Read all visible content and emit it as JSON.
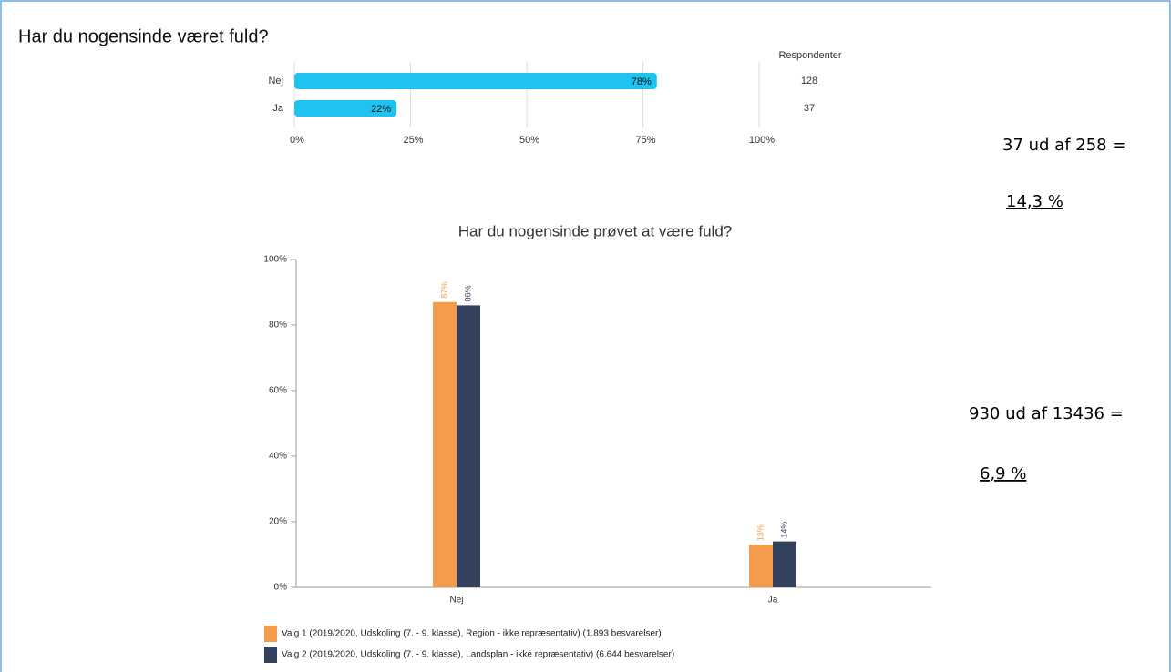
{
  "chart_data": [
    {
      "type": "hbar",
      "title": "Har du nogensinde været fuld?",
      "categories": [
        "Nej",
        "Ja"
      ],
      "values": [
        78,
        22
      ],
      "value_labels": [
        "78%",
        "22%"
      ],
      "color": "#1ec3f0",
      "xlim": [
        0,
        100
      ],
      "xticks": [
        {
          "value": 0,
          "label": "0%"
        },
        {
          "value": 25,
          "label": "25%"
        },
        {
          "value": 50,
          "label": "50%"
        },
        {
          "value": 75,
          "label": "75%"
        },
        {
          "value": 100,
          "label": "100%"
        }
      ],
      "grid": true,
      "respondents": {
        "label": "Respondenter",
        "values": [
          128,
          37
        ]
      }
    },
    {
      "type": "bar",
      "title": "Har du nogensinde prøvet at være fuld?",
      "categories": [
        "Nej",
        "Ja"
      ],
      "series": [
        {
          "name": "Valg 1 (2019/2020, Udskoling (7. - 9. klasse), Region - ikke repræsentativ) (1.893 besvarelser)",
          "color": "#f59c4a",
          "values": [
            87,
            13
          ],
          "value_labels": [
            "87%",
            "13%"
          ]
        },
        {
          "name": "Valg 2 (2019/2020, Udskoling (7. - 9. klasse), Landsplan - ikke repræsentativ) (6.644 besvarelser)",
          "color": "#35425e",
          "values": [
            86,
            14
          ],
          "value_labels": [
            "86%",
            "14%"
          ]
        }
      ],
      "ylim": [
        0,
        100
      ],
      "yticks": [
        {
          "value": 0,
          "label": "0%"
        },
        {
          "value": 20,
          "label": "20%"
        },
        {
          "value": 40,
          "label": "40%"
        },
        {
          "value": 60,
          "label": "60%"
        },
        {
          "value": 80,
          "label": "80%"
        },
        {
          "value": 100,
          "label": "100%"
        }
      ]
    }
  ],
  "annotations": [
    "37 ud af 258 =",
    "14,3 %",
    "930 ud af 13436 =",
    "6,9 %"
  ]
}
